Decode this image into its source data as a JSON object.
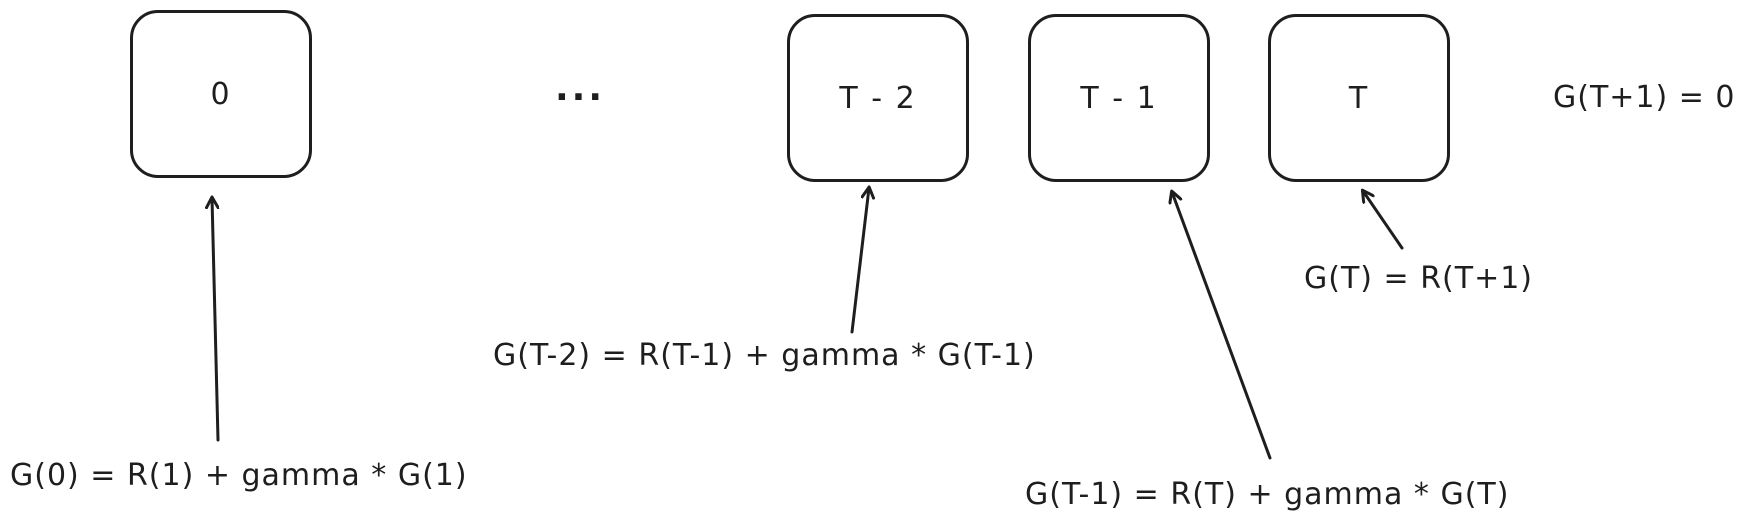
{
  "diagram": {
    "nodes": [
      {
        "id": "node-0",
        "label": "0"
      },
      {
        "id": "node-t-minus-2",
        "label": "T - 2"
      },
      {
        "id": "node-t-minus-1",
        "label": "T - 1"
      },
      {
        "id": "node-t",
        "label": "T"
      }
    ],
    "ellipsis": "...",
    "terminal_label": "G(T+1) = 0",
    "equations": {
      "g0": "G(0) = R(1) + gamma * G(1)",
      "g_t_minus_2": "G(T-2) = R(T-1) + gamma * G(T-1)",
      "g_t_minus_1": "G(T-1) = R(T) + gamma * G(T)",
      "g_t": "G(T) = R(T+1)"
    },
    "colors": {
      "stroke": "#1e1e1e",
      "background": "#ffffff"
    }
  }
}
